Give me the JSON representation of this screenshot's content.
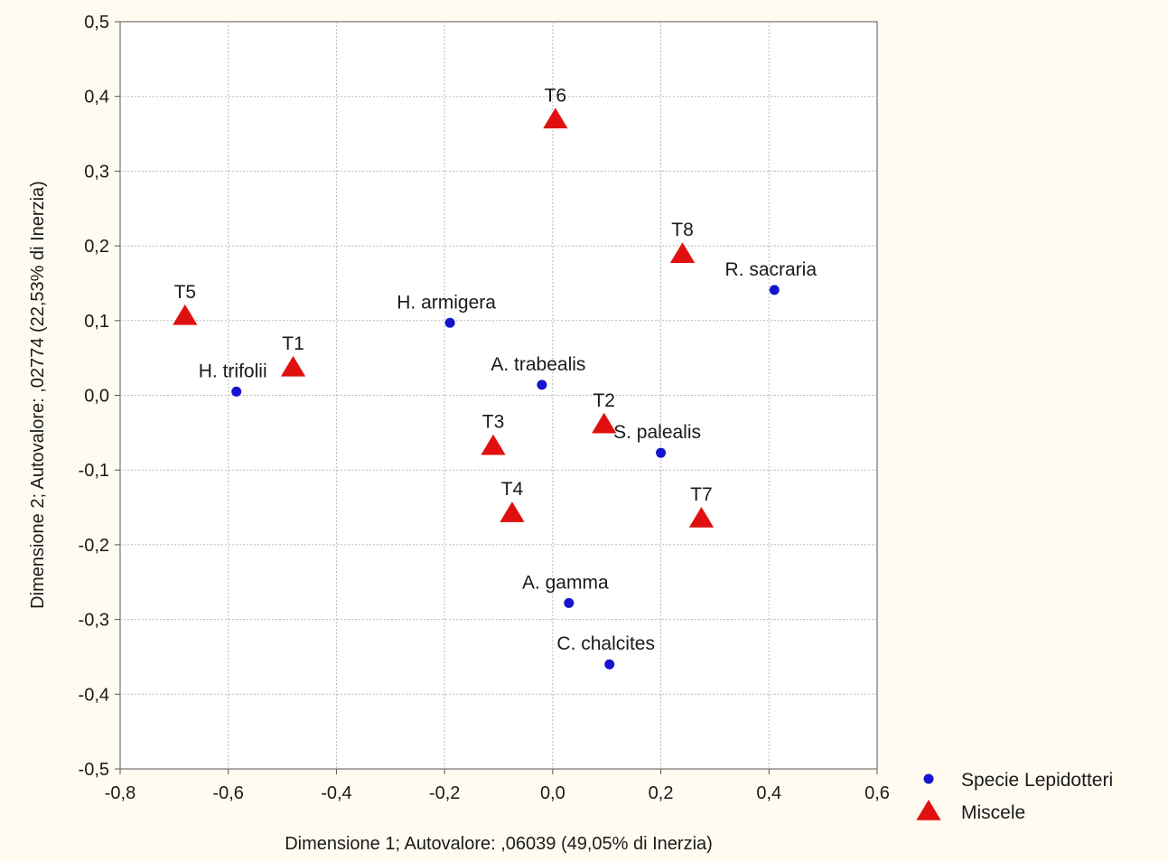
{
  "chart_data": {
    "type": "scatter",
    "xlabel": "Dimensione 1; Autovalore: ,06039 (49,05% di Inerzia)",
    "ylabel": "Dimensione 2; Autovalore: ,02774 (22,53% di Inerzia)",
    "xlim": [
      -0.8,
      0.6
    ],
    "ylim": [
      -0.5,
      0.5
    ],
    "x_ticks": [
      {
        "value": -0.8,
        "label": "-0,8"
      },
      {
        "value": -0.6,
        "label": "-0,6"
      },
      {
        "value": -0.4,
        "label": "-0,4"
      },
      {
        "value": -0.2,
        "label": "-0,2"
      },
      {
        "value": 0.0,
        "label": "0,0"
      },
      {
        "value": 0.2,
        "label": "0,2"
      },
      {
        "value": 0.4,
        "label": "0,4"
      },
      {
        "value": 0.6,
        "label": "0,6"
      }
    ],
    "y_ticks": [
      {
        "value": 0.5,
        "label": "0,5"
      },
      {
        "value": 0.4,
        "label": "0,4"
      },
      {
        "value": 0.3,
        "label": "0,3"
      },
      {
        "value": 0.2,
        "label": "0,2"
      },
      {
        "value": 0.1,
        "label": "0,1"
      },
      {
        "value": 0.0,
        "label": "0,0"
      },
      {
        "value": -0.1,
        "label": "-0,1"
      },
      {
        "value": -0.2,
        "label": "-0,2"
      },
      {
        "value": -0.3,
        "label": "-0,3"
      },
      {
        "value": -0.4,
        "label": "-0,4"
      },
      {
        "value": -0.5,
        "label": "-0,5"
      }
    ],
    "grid": true,
    "legend_position": "bottom-right-outside",
    "series": [
      {
        "name": "Specie Lepidotteri",
        "marker": "circle",
        "color": "#1515d0",
        "points": [
          {
            "label": "H. trifolii",
            "x": -0.585,
            "y": 0.005
          },
          {
            "label": "H. armigera",
            "x": -0.19,
            "y": 0.097
          },
          {
            "label": "A. trabealis",
            "x": -0.02,
            "y": 0.014
          },
          {
            "label": "S. palealis",
            "x": 0.2,
            "y": -0.077
          },
          {
            "label": "R. sacraria",
            "x": 0.41,
            "y": 0.141
          },
          {
            "label": "A. gamma",
            "x": 0.03,
            "y": -0.278
          },
          {
            "label": "C. chalcites",
            "x": 0.105,
            "y": -0.36
          }
        ]
      },
      {
        "name": "Miscele",
        "marker": "triangle",
        "color": "#e01010",
        "points": [
          {
            "label": "T1",
            "x": -0.48,
            "y": 0.037
          },
          {
            "label": "T2",
            "x": 0.095,
            "y": -0.039
          },
          {
            "label": "T3",
            "x": -0.11,
            "y": -0.068
          },
          {
            "label": "T4",
            "x": -0.075,
            "y": -0.158
          },
          {
            "label": "T5",
            "x": -0.68,
            "y": 0.106
          },
          {
            "label": "T6",
            "x": 0.005,
            "y": 0.369
          },
          {
            "label": "T7",
            "x": 0.275,
            "y": -0.165
          },
          {
            "label": "T8",
            "x": 0.24,
            "y": 0.189
          }
        ]
      }
    ]
  }
}
